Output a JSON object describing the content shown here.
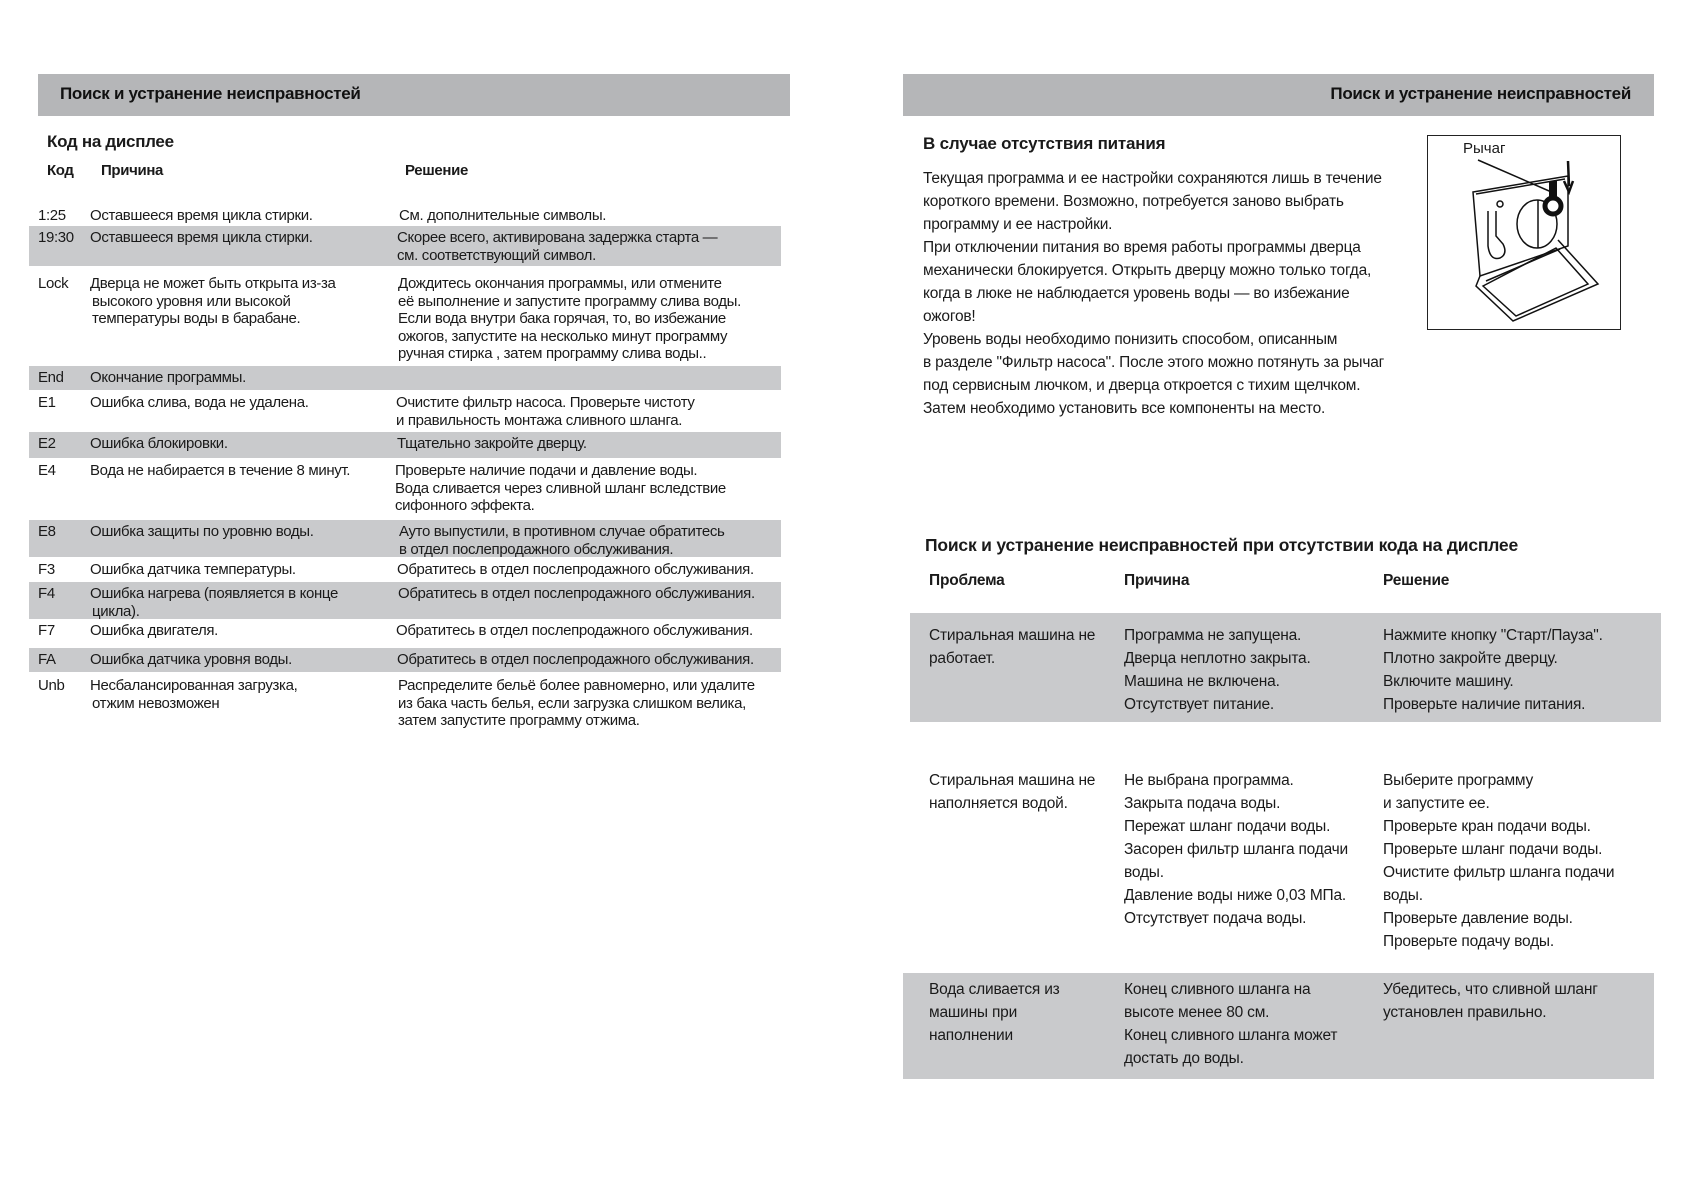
{
  "left_page": {
    "header_title": "Поиск и устранение неисправностей",
    "section_title": "Код на дисплее",
    "columns": {
      "code": "Код",
      "cause": "Причина",
      "solution": "Решение"
    },
    "rows": [
      {
        "code": "1:25",
        "cause": [
          "Оставшееся время цикла стирки."
        ],
        "solution": [
          "См. дополнительные символы."
        ],
        "shaded": false
      },
      {
        "code": "19:30",
        "cause": [
          "Оставшееся время цикла стирки."
        ],
        "solution": [
          "Скорее всего, активирована задержка старта —",
          "см. соответствующий символ."
        ],
        "shaded": true
      },
      {
        "code": "Lock",
        "cause": [
          "Дверца не может быть открыта из-за",
          "высокого уровня или высокой",
          "температуры воды в барабане."
        ],
        "solution": [
          "Дождитесь окончания программы, или отмените",
          "её выполнение и запустите программу слива воды.",
          "Если вода внутри бака горячая, то, во избежание",
          "ожогов, запустите на несколько минут программу",
          "ручная стирка , затем программу слива воды.."
        ],
        "shaded": false
      },
      {
        "code": "End",
        "cause": [
          "Окончание программы."
        ],
        "solution": [],
        "shaded": true
      },
      {
        "code": "E1",
        "cause": [
          "Ошибка слива, вода не удалена."
        ],
        "solution": [
          "Очистите фильтр насоса.  Проверьте чистоту",
          "и правильность монтажа сливного шланга."
        ],
        "shaded": false
      },
      {
        "code": "E2",
        "cause": [
          "Ошибка блокировки."
        ],
        "solution": [
          "Тщательно закройте дверцу."
        ],
        "shaded": true
      },
      {
        "code": "E4",
        "cause": [
          "Вода не набирается в течение 8 минут."
        ],
        "solution": [
          "Проверьте наличие подачи и давление воды.",
          "Вода сливается через сливной шланг вследствие",
          "сифонного эффекта."
        ],
        "shaded": false
      },
      {
        "code": "E8",
        "cause": [
          "Ошибка защиты по уровню воды."
        ],
        "solution": [
          "Ауто выпустили, в противном случае  обратитесь",
          "в отдел послепродажного обслуживания."
        ],
        "shaded": true
      },
      {
        "code": "F3",
        "cause": [
          "Ошибка датчика температуры."
        ],
        "solution": [
          "Обратитесь в отдел послепродажного обслуживания."
        ],
        "shaded": false
      },
      {
        "code": "F4",
        "cause": [
          "Ошибка нагрева (появляется в конце",
          "цикла)."
        ],
        "solution": [
          "Обратитесь в отдел послепродажного обслуживания."
        ],
        "shaded": true
      },
      {
        "code": "F7",
        "cause": [
          "Ошибка двигателя."
        ],
        "solution": [
          "Обратитесь в отдел  послепродажного обслуживания."
        ],
        "shaded": false
      },
      {
        "code": "FA",
        "cause": [
          "Ошибка датчика уровня воды."
        ],
        "solution": [
          "Обратитесь в отдел  послепродажного обслуживания."
        ],
        "shaded": true
      },
      {
        "code": "Unb",
        "cause": [
          "Несбалансированная загрузка,",
          "отжим невозможен"
        ],
        "solution": [
          "Распределите бельё более равномерно, или удалите",
          "из бака часть белья, если загрузка слишком велика,",
          "затем запустите программу отжима."
        ],
        "shaded": false
      }
    ]
  },
  "right_page": {
    "header_title": "Поиск и устранение неисправностей",
    "power": {
      "title": "В случае отсутствия питания",
      "lines": [
        "Текущая программа и ее настройки сохраняются лишь в течение",
        "короткого времени. Возможно, потребуется заново выбрать",
        "программу и ее настройки.",
        "При отключении питания во время работы программы дверца",
        "механически блокируется. Открыть дверцу можно только тогда,",
        "когда в люке не наблюдается уровень воды — во избежание",
        "ожогов!",
        "Уровень воды необходимо понизить способом, описанным",
        "в разделе \"Фильтр насоса\". После этого можно потянуть за рычаг",
        "под сервисным лючком, и дверца откроется с тихим щелчком.",
        "Затем необходимо установить все компоненты на место."
      ],
      "figure_label": "Рычаг"
    },
    "nocode": {
      "title": "Поиск и устранение неисправностей при отсутствии кода на дисплее",
      "columns": {
        "problem": "Проблема",
        "cause": "Причина",
        "solution": "Решение"
      },
      "rows": [
        {
          "problem": [
            "Стиральная машина не",
            "работает."
          ],
          "cause": [
            "Программа не запущена.",
            "Дверца неплотно закрыта.",
            "Машина не включена.",
            "Отсутствует питание."
          ],
          "solution": [
            "Нажмите кнопку \"Старт/Пауза\".",
            "Плотно закройте дверцу.",
            "Включите машину.",
            "Проверьте наличие питания."
          ],
          "shaded": true
        },
        {
          "problem": [
            "Стиральная машина не",
            "наполняется водой."
          ],
          "cause": [
            "Не выбрана программа.",
            "Закрыта подача воды.",
            "Пережат шланг подачи воды.",
            "Засорен фильтр шланга подачи",
            "воды.",
            "Давление воды ниже 0,03 МПа.",
            "Отсутствует подача воды."
          ],
          "solution": [
            "Выберите программу",
            "и запустите ее.",
            "Проверьте кран подачи воды.",
            "Проверьте шланг подачи воды.",
            "Очистите фильтр шланга подачи",
            "воды.",
            "Проверьте давление воды.",
            "Проверьте подачу воды."
          ],
          "shaded": false
        },
        {
          "problem": [
            "Вода сливается из",
            "машины при",
            "наполнении"
          ],
          "cause": [
            "Конец сливного шланга на",
            "высоте менее 80 см.",
            "Конец сливного шланга может",
            "достать до воды."
          ],
          "solution": [
            "Убедитесь, что сливной шланг",
            "установлен правильно."
          ],
          "shaded": true
        }
      ]
    },
    "colors": {
      "header_bar": "#b5b6b8",
      "row_shade": "#c9cacc"
    }
  }
}
